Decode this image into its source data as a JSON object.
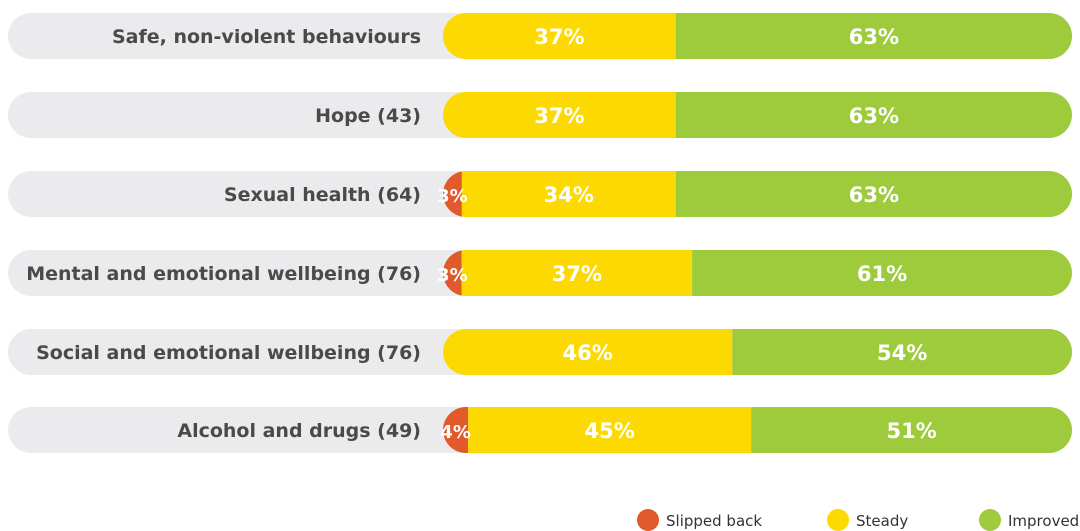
{
  "chart_data": {
    "type": "bar",
    "stacked": true,
    "categories": [
      "Safe, non-violent behaviours",
      "Hope (43)",
      "Sexual health (64)",
      "Mental and emotional wellbeing (76)",
      "Social and emotional wellbeing (76)",
      "Alcohol and drugs (49)"
    ],
    "series": [
      {
        "name": "Slipped back",
        "color": "#e05a2b",
        "values": [
          0,
          0,
          3,
          3,
          0,
          4
        ],
        "labels": [
          "",
          "",
          "3%",
          "3%",
          "",
          "4%"
        ]
      },
      {
        "name": "Steady",
        "color": "#fcd900",
        "values": [
          37,
          37,
          34,
          37,
          46,
          45
        ],
        "labels": [
          "37%",
          "37%",
          "34%",
          "37%",
          "46%",
          "45%"
        ]
      },
      {
        "name": "Improved",
        "color": "#9ecb3b",
        "values": [
          63,
          63,
          63,
          61,
          54,
          51
        ],
        "labels": [
          "63%",
          "63%",
          "63%",
          "61%",
          "54%",
          "51%"
        ]
      }
    ],
    "xlim": [
      0,
      100
    ],
    "grid": false,
    "legend_position": "bottom-right",
    "track_color": "#ebebed"
  }
}
